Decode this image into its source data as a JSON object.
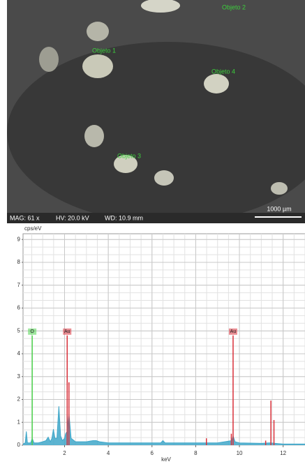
{
  "image": {
    "labels": [
      "Objeto 2",
      "Objeto 1",
      "Objeto 4",
      "Objeto 3"
    ],
    "info": [
      "MAG: 61 x",
      "HV: 20.0 kV",
      "WD: 10.9 mm"
    ],
    "scale_bar": "1000 µm"
  },
  "chart_data": {
    "type": "line",
    "y_label": "cps/eV",
    "x_label": "keV",
    "xlim": [
      0.1,
      13.0
    ],
    "ylim": [
      0,
      9.25
    ],
    "xticks": [
      2,
      4,
      6,
      8,
      10,
      12
    ],
    "yticks": [
      0,
      1,
      2,
      3,
      4,
      5,
      6,
      7,
      8,
      9
    ],
    "grid": true,
    "series": [
      {
        "color": "#3fa7c9",
        "x": [
          0.1,
          0.2,
          0.25,
          0.3,
          0.45,
          0.52,
          0.6,
          0.8,
          1.0,
          1.15,
          1.25,
          1.35,
          1.42,
          1.49,
          1.56,
          1.65,
          1.74,
          1.82,
          1.9,
          2.0,
          2.05,
          2.12,
          2.2,
          2.3,
          2.5,
          2.7,
          3.0,
          3.3,
          3.45,
          3.6,
          4.0,
          5.0,
          6.0,
          6.4,
          6.5,
          6.6,
          7.0,
          8.0,
          9.0,
          9.65,
          9.71,
          9.8,
          10.0,
          11.0,
          11.4,
          12.0,
          13.0
        ],
        "values": [
          0.05,
          0.1,
          0.6,
          0.1,
          0.1,
          0.3,
          0.1,
          0.1,
          0.15,
          0.2,
          0.35,
          0.15,
          0.3,
          0.7,
          0.3,
          0.3,
          1.7,
          0.4,
          0.2,
          0.3,
          0.5,
          0.6,
          1.4,
          0.3,
          0.15,
          0.15,
          0.15,
          0.2,
          0.2,
          0.15,
          0.1,
          0.1,
          0.1,
          0.1,
          0.2,
          0.1,
          0.1,
          0.1,
          0.1,
          0.2,
          0.4,
          0.15,
          0.1,
          0.08,
          0.1,
          0.05,
          0.05
        ]
      },
      {
        "color": "#d9303a",
        "x": [
          2.2,
          8.49,
          9.63,
          11.2,
          11.44,
          11.58
        ],
        "values": [
          2.75,
          0.3,
          0.5,
          0.2,
          1.95,
          1.1
        ]
      }
    ],
    "peaks": [
      {
        "label": "O",
        "x": 0.52,
        "height": 4.8,
        "color": "#4fd34f"
      },
      {
        "label": "Au",
        "x": 2.12,
        "height": 4.8,
        "color": "#d9303a"
      },
      {
        "label": "Au",
        "x": 9.71,
        "height": 4.8,
        "color": "#d9303a"
      }
    ]
  }
}
